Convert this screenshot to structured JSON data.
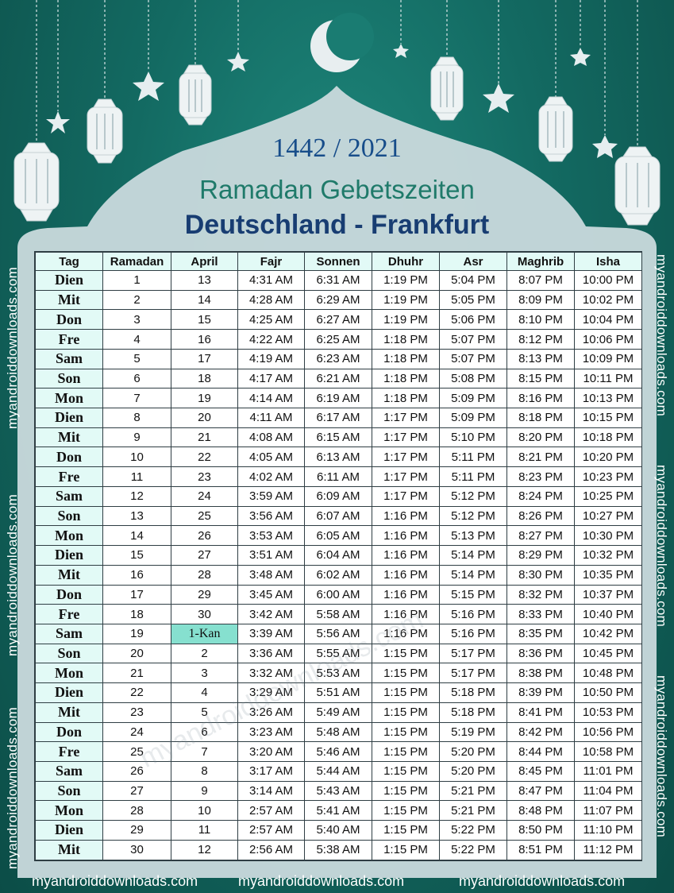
{
  "header": {
    "year": "1442 / 2021",
    "title": "Ramadan Gebetszeiten",
    "subtitle": "Deutschland - Frankfurt"
  },
  "table": {
    "columns": [
      "Tag",
      "Ramadan",
      "April",
      "Fajr",
      "Sonnen",
      "Dhuhr",
      "Asr",
      "Maghrib",
      "Isha"
    ],
    "rows": [
      [
        "Dien",
        "1",
        "13",
        "4:31 AM",
        "6:31 AM",
        "1:19 PM",
        "5:04 PM",
        "8:07 PM",
        "10:00 PM"
      ],
      [
        "Mit",
        "2",
        "14",
        "4:28 AM",
        "6:29 AM",
        "1:19 PM",
        "5:05 PM",
        "8:09 PM",
        "10:02 PM"
      ],
      [
        "Don",
        "3",
        "15",
        "4:25 AM",
        "6:27 AM",
        "1:19 PM",
        "5:06 PM",
        "8:10 PM",
        "10:04 PM"
      ],
      [
        "Fre",
        "4",
        "16",
        "4:22 AM",
        "6:25 AM",
        "1:18 PM",
        "5:07 PM",
        "8:12 PM",
        "10:06 PM"
      ],
      [
        "Sam",
        "5",
        "17",
        "4:19 AM",
        "6:23 AM",
        "1:18 PM",
        "5:07 PM",
        "8:13 PM",
        "10:09 PM"
      ],
      [
        "Son",
        "6",
        "18",
        "4:17 AM",
        "6:21 AM",
        "1:18 PM",
        "5:08 PM",
        "8:15 PM",
        "10:11 PM"
      ],
      [
        "Mon",
        "7",
        "19",
        "4:14 AM",
        "6:19 AM",
        "1:18 PM",
        "5:09 PM",
        "8:16 PM",
        "10:13 PM"
      ],
      [
        "Dien",
        "8",
        "20",
        "4:11 AM",
        "6:17 AM",
        "1:17 PM",
        "5:09 PM",
        "8:18 PM",
        "10:15 PM"
      ],
      [
        "Mit",
        "9",
        "21",
        "4:08 AM",
        "6:15 AM",
        "1:17 PM",
        "5:10 PM",
        "8:20 PM",
        "10:18 PM"
      ],
      [
        "Don",
        "10",
        "22",
        "4:05 AM",
        "6:13 AM",
        "1:17 PM",
        "5:11 PM",
        "8:21 PM",
        "10:20 PM"
      ],
      [
        "Fre",
        "11",
        "23",
        "4:02 AM",
        "6:11 AM",
        "1:17 PM",
        "5:11 PM",
        "8:23 PM",
        "10:23 PM"
      ],
      [
        "Sam",
        "12",
        "24",
        "3:59 AM",
        "6:09 AM",
        "1:17 PM",
        "5:12 PM",
        "8:24 PM",
        "10:25 PM"
      ],
      [
        "Son",
        "13",
        "25",
        "3:56 AM",
        "6:07 AM",
        "1:16 PM",
        "5:12 PM",
        "8:26 PM",
        "10:27 PM"
      ],
      [
        "Mon",
        "14",
        "26",
        "3:53 AM",
        "6:05 AM",
        "1:16 PM",
        "5:13 PM",
        "8:27 PM",
        "10:30 PM"
      ],
      [
        "Dien",
        "15",
        "27",
        "3:51 AM",
        "6:04 AM",
        "1:16 PM",
        "5:14 PM",
        "8:29 PM",
        "10:32 PM"
      ],
      [
        "Mit",
        "16",
        "28",
        "3:48 AM",
        "6:02 AM",
        "1:16 PM",
        "5:14 PM",
        "8:30 PM",
        "10:35 PM"
      ],
      [
        "Don",
        "17",
        "29",
        "3:45 AM",
        "6:00 AM",
        "1:16 PM",
        "5:15 PM",
        "8:32 PM",
        "10:37 PM"
      ],
      [
        "Fre",
        "18",
        "30",
        "3:42 AM",
        "5:58 AM",
        "1:16 PM",
        "5:16 PM",
        "8:33 PM",
        "10:40 PM"
      ],
      [
        "Sam",
        "19",
        "1-Kan",
        "3:39 AM",
        "5:56 AM",
        "1:16 PM",
        "5:16 PM",
        "8:35 PM",
        "10:42 PM"
      ],
      [
        "Son",
        "20",
        "2",
        "3:36 AM",
        "5:55 AM",
        "1:15 PM",
        "5:17 PM",
        "8:36 PM",
        "10:45 PM"
      ],
      [
        "Mon",
        "21",
        "3",
        "3:32 AM",
        "5:53 AM",
        "1:15 PM",
        "5:17 PM",
        "8:38 PM",
        "10:48 PM"
      ],
      [
        "Dien",
        "22",
        "4",
        "3:29 AM",
        "5:51 AM",
        "1:15 PM",
        "5:18 PM",
        "8:39 PM",
        "10:50 PM"
      ],
      [
        "Mit",
        "23",
        "5",
        "3:26 AM",
        "5:49 AM",
        "1:15 PM",
        "5:18 PM",
        "8:41 PM",
        "10:53 PM"
      ],
      [
        "Don",
        "24",
        "6",
        "3:23 AM",
        "5:48 AM",
        "1:15 PM",
        "5:19 PM",
        "8:42 PM",
        "10:56 PM"
      ],
      [
        "Fre",
        "25",
        "7",
        "3:20 AM",
        "5:46 AM",
        "1:15 PM",
        "5:20 PM",
        "8:44 PM",
        "10:58 PM"
      ],
      [
        "Sam",
        "26",
        "8",
        "3:17 AM",
        "5:44 AM",
        "1:15 PM",
        "5:20 PM",
        "8:45 PM",
        "11:01 PM"
      ],
      [
        "Son",
        "27",
        "9",
        "3:14 AM",
        "5:43 AM",
        "1:15 PM",
        "5:21 PM",
        "8:47 PM",
        "11:04 PM"
      ],
      [
        "Mon",
        "28",
        "10",
        "2:57 AM",
        "5:41 AM",
        "1:15 PM",
        "5:21 PM",
        "8:48 PM",
        "11:07 PM"
      ],
      [
        "Dien",
        "29",
        "11",
        "2:57 AM",
        "5:40 AM",
        "1:15 PM",
        "5:22 PM",
        "8:50 PM",
        "11:10 PM"
      ],
      [
        "Mit",
        "30",
        "12",
        "2:56 AM",
        "5:38 AM",
        "1:15 PM",
        "5:22 PM",
        "8:51 PM",
        "11:12 PM"
      ]
    ],
    "highlight_cell": {
      "row": 18,
      "col": 2,
      "color": "#86e0cf"
    }
  },
  "watermarks": {
    "side": "myandroiddownloads.com",
    "bottom": "myandroiddownloads.com"
  },
  "colors": {
    "background": "#136a62",
    "mosque_fill": "#c8d8dc",
    "header_cell": "#e2faf6",
    "year_text": "#174d8a",
    "title_text": "#1f7a6a",
    "subtitle_text": "#183d72"
  }
}
